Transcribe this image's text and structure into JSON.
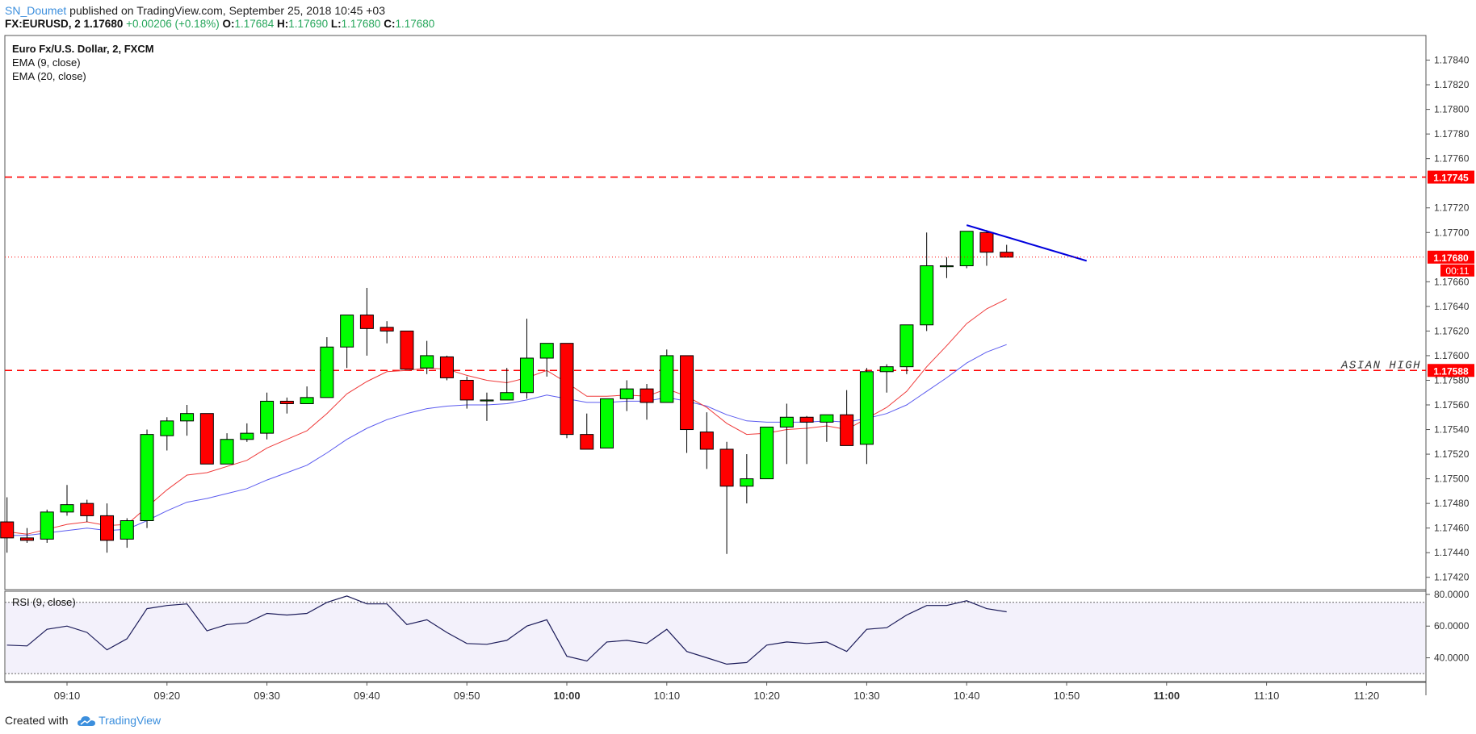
{
  "header": {
    "author": "SN_Doumet",
    "published": " published on TradingView.com, September 25, 2018 10:45 +03",
    "symbol": "FX:EURUSD, 2",
    "last": "1.17680",
    "change": "+0.00206 (+0.18%)",
    "o_label": "O:",
    "o": "1.17684",
    "h_label": "H:",
    "h": "1.17690",
    "l_label": "L:",
    "l": "1.17680",
    "c_label": "C:",
    "c": "1.17680"
  },
  "legend": {
    "instrument": "Euro Fx/U.S. Dollar, 2, FXCM",
    "ema9": "EMA (9, close)",
    "ema20": "EMA (20, close)",
    "rsi": "RSI (9, close)"
  },
  "footer": {
    "created_with": "Created with",
    "brand": "TradingView"
  },
  "colors": {
    "up": "#00ff00",
    "down": "#ff0000",
    "ema9": "#ef3a3a",
    "ema20": "#5b5bef",
    "rsi": "#1c1c5a",
    "level_line": "#ff0000",
    "trendline": "#0000dd",
    "tag_bg": "#ff0000"
  },
  "chart_data": {
    "type": "candlestick",
    "yrange": [
      1.1741,
      1.1786
    ],
    "price_ticks": [
      "1.17840",
      "1.17820",
      "1.17800",
      "1.17780",
      "1.17760",
      "1.17720",
      "1.17700",
      "1.17660",
      "1.17640",
      "1.17620",
      "1.17600",
      "1.17580",
      "1.17560",
      "1.17540",
      "1.17520",
      "1.17500",
      "1.17480",
      "1.17460",
      "1.17440",
      "1.17420"
    ],
    "time_ticks": [
      {
        "t": "09:10",
        "bold": false
      },
      {
        "t": "09:20",
        "bold": false
      },
      {
        "t": "09:30",
        "bold": false
      },
      {
        "t": "09:40",
        "bold": false
      },
      {
        "t": "09:50",
        "bold": false
      },
      {
        "t": "10:00",
        "bold": true
      },
      {
        "t": "10:10",
        "bold": false
      },
      {
        "t": "10:20",
        "bold": false
      },
      {
        "t": "10:30",
        "bold": false
      },
      {
        "t": "10:40",
        "bold": false
      },
      {
        "t": "10:50",
        "bold": false
      },
      {
        "t": "11:00",
        "bold": true
      },
      {
        "t": "11:10",
        "bold": false
      },
      {
        "t": "11:20",
        "bold": false
      }
    ],
    "time_tick_minutes": [
      550,
      560,
      570,
      580,
      590,
      600,
      610,
      620,
      630,
      640,
      650,
      660,
      670,
      680
    ],
    "start_minute": 544,
    "bar_minutes": 2,
    "candles": [
      [
        1.17465,
        1.17485,
        1.1744,
        1.17452
      ],
      [
        1.17452,
        1.1746,
        1.17448,
        1.1745
      ],
      [
        1.17451,
        1.17475,
        1.17448,
        1.17473
      ],
      [
        1.17473,
        1.17495,
        1.1747,
        1.17479
      ],
      [
        1.1748,
        1.17483,
        1.17465,
        1.1747
      ],
      [
        1.1747,
        1.1748,
        1.1744,
        1.1745
      ],
      [
        1.17451,
        1.17468,
        1.17444,
        1.17466
      ],
      [
        1.17466,
        1.1754,
        1.1746,
        1.17536
      ],
      [
        1.17535,
        1.1755,
        1.17523,
        1.17547
      ],
      [
        1.17547,
        1.1756,
        1.17535,
        1.17553
      ],
      [
        1.17553,
        1.17553,
        1.17512,
        1.17512
      ],
      [
        1.17512,
        1.17537,
        1.17512,
        1.17532
      ],
      [
        1.17532,
        1.17545,
        1.1753,
        1.17537
      ],
      [
        1.17537,
        1.1757,
        1.17532,
        1.17563
      ],
      [
        1.17563,
        1.17566,
        1.17553,
        1.17561
      ],
      [
        1.17561,
        1.17575,
        1.17561,
        1.17566
      ],
      [
        1.17566,
        1.17615,
        1.17566,
        1.17607
      ],
      [
        1.17607,
        1.17633,
        1.1759,
        1.17633
      ],
      [
        1.17633,
        1.17655,
        1.176,
        1.17622
      ],
      [
        1.17623,
        1.17628,
        1.1761,
        1.1762
      ],
      [
        1.1762,
        1.1762,
        1.17589,
        1.17589
      ],
      [
        1.1759,
        1.17612,
        1.17585,
        1.176
      ],
      [
        1.17599,
        1.176,
        1.1758,
        1.17582
      ],
      [
        1.1758,
        1.17583,
        1.17557,
        1.17564
      ],
      [
        1.17564,
        1.1757,
        1.17547,
        1.17564
      ],
      [
        1.17564,
        1.1759,
        1.17564,
        1.1757
      ],
      [
        1.1757,
        1.1763,
        1.17565,
        1.17598
      ],
      [
        1.17598,
        1.1761,
        1.17583,
        1.1761
      ],
      [
        1.1761,
        1.1761,
        1.17533,
        1.17536
      ],
      [
        1.17536,
        1.17553,
        1.17524,
        1.17524
      ],
      [
        1.17525,
        1.17565,
        1.17525,
        1.17565
      ],
      [
        1.17565,
        1.1758,
        1.17555,
        1.17573
      ],
      [
        1.17573,
        1.17577,
        1.17548,
        1.17562
      ],
      [
        1.17562,
        1.17605,
        1.17562,
        1.176
      ],
      [
        1.176,
        1.176,
        1.17521,
        1.1754
      ],
      [
        1.17538,
        1.17554,
        1.17508,
        1.17524
      ],
      [
        1.17524,
        1.1753,
        1.17439,
        1.17494
      ],
      [
        1.17494,
        1.1752,
        1.1748,
        1.175
      ],
      [
        1.175,
        1.17542,
        1.175,
        1.17542
      ],
      [
        1.17542,
        1.17561,
        1.17512,
        1.1755
      ],
      [
        1.1755,
        1.17551,
        1.17512,
        1.17546
      ],
      [
        1.17546,
        1.17552,
        1.1753,
        1.17552
      ],
      [
        1.17552,
        1.17572,
        1.17528,
        1.17527
      ],
      [
        1.17528,
        1.1759,
        1.17512,
        1.17587
      ],
      [
        1.17587,
        1.17593,
        1.1757,
        1.17591
      ],
      [
        1.17591,
        1.17625,
        1.17585,
        1.17625
      ],
      [
        1.17625,
        1.177,
        1.1762,
        1.17673
      ],
      [
        1.17673,
        1.1768,
        1.17663,
        1.17673
      ],
      [
        1.17673,
        1.17701,
        1.17671,
        1.17701
      ],
      [
        1.177,
        1.17702,
        1.17673,
        1.17684
      ],
      [
        1.17684,
        1.1769,
        1.1768,
        1.1768
      ]
    ],
    "ema9": [
      1.17457,
      1.17455,
      1.17459,
      1.17463,
      1.17465,
      1.17462,
      1.17463,
      1.17477,
      1.17491,
      1.17503,
      1.17505,
      1.1751,
      1.17515,
      1.17525,
      1.17532,
      1.17539,
      1.17553,
      1.17569,
      1.17579,
      1.17587,
      1.17588,
      1.1759,
      1.17589,
      1.17584,
      1.1758,
      1.17578,
      1.17582,
      1.17588,
      1.17578,
      1.17567,
      1.17567,
      1.17568,
      1.17567,
      1.17573,
      1.17567,
      1.17558,
      1.17545,
      1.17536,
      1.17537,
      1.1754,
      1.17541,
      1.17543,
      1.1754,
      1.17549,
      1.17558,
      1.17571,
      1.17591,
      1.17608,
      1.17626,
      1.17638,
      1.17646
    ],
    "ema20": [
      1.17454,
      1.17454,
      1.17456,
      1.17458,
      1.1746,
      1.17458,
      1.17459,
      1.17466,
      1.17474,
      1.17481,
      1.17484,
      1.17488,
      1.17492,
      1.17499,
      1.17505,
      1.17511,
      1.17521,
      1.17532,
      1.17541,
      1.17548,
      1.17553,
      1.17557,
      1.17559,
      1.1756,
      1.1756,
      1.17561,
      1.17564,
      1.17568,
      1.17565,
      1.17562,
      1.17562,
      1.17563,
      1.17563,
      1.17566,
      1.17563,
      1.17559,
      1.17552,
      1.17547,
      1.17546,
      1.17546,
      1.17546,
      1.17547,
      1.17546,
      1.17549,
      1.17553,
      1.1756,
      1.17571,
      1.17582,
      1.17594,
      1.17603,
      1.17609
    ],
    "rsi": [
      48,
      47.5,
      58,
      60,
      56,
      45,
      52,
      71,
      73,
      74,
      57,
      61,
      62,
      68,
      67,
      68,
      75,
      79,
      74,
      74,
      61,
      64,
      56,
      49,
      48.5,
      51,
      60,
      64,
      41,
      38,
      50,
      51,
      49,
      58,
      44,
      40,
      36,
      37,
      48,
      50,
      49,
      50,
      44,
      58,
      59,
      67,
      73,
      73,
      76,
      71,
      69
    ],
    "rsi_range": [
      25,
      82
    ],
    "rsi_ticks": [
      "80.0000",
      "60.0000",
      "40.0000"
    ],
    "rsi_bands": [
      75,
      30
    ],
    "levels": [
      {
        "price": 1.17745,
        "label": "1.17745"
      },
      {
        "price": 1.17588,
        "label": "1.17588"
      }
    ],
    "last_price_tag": {
      "price": 1.1768,
      "label": "1.17680",
      "countdown": "00:11"
    },
    "annotation": "ASIAN HIGH",
    "trendline": [
      [
        640,
        1.17706
      ],
      [
        652,
        1.17677
      ]
    ]
  }
}
